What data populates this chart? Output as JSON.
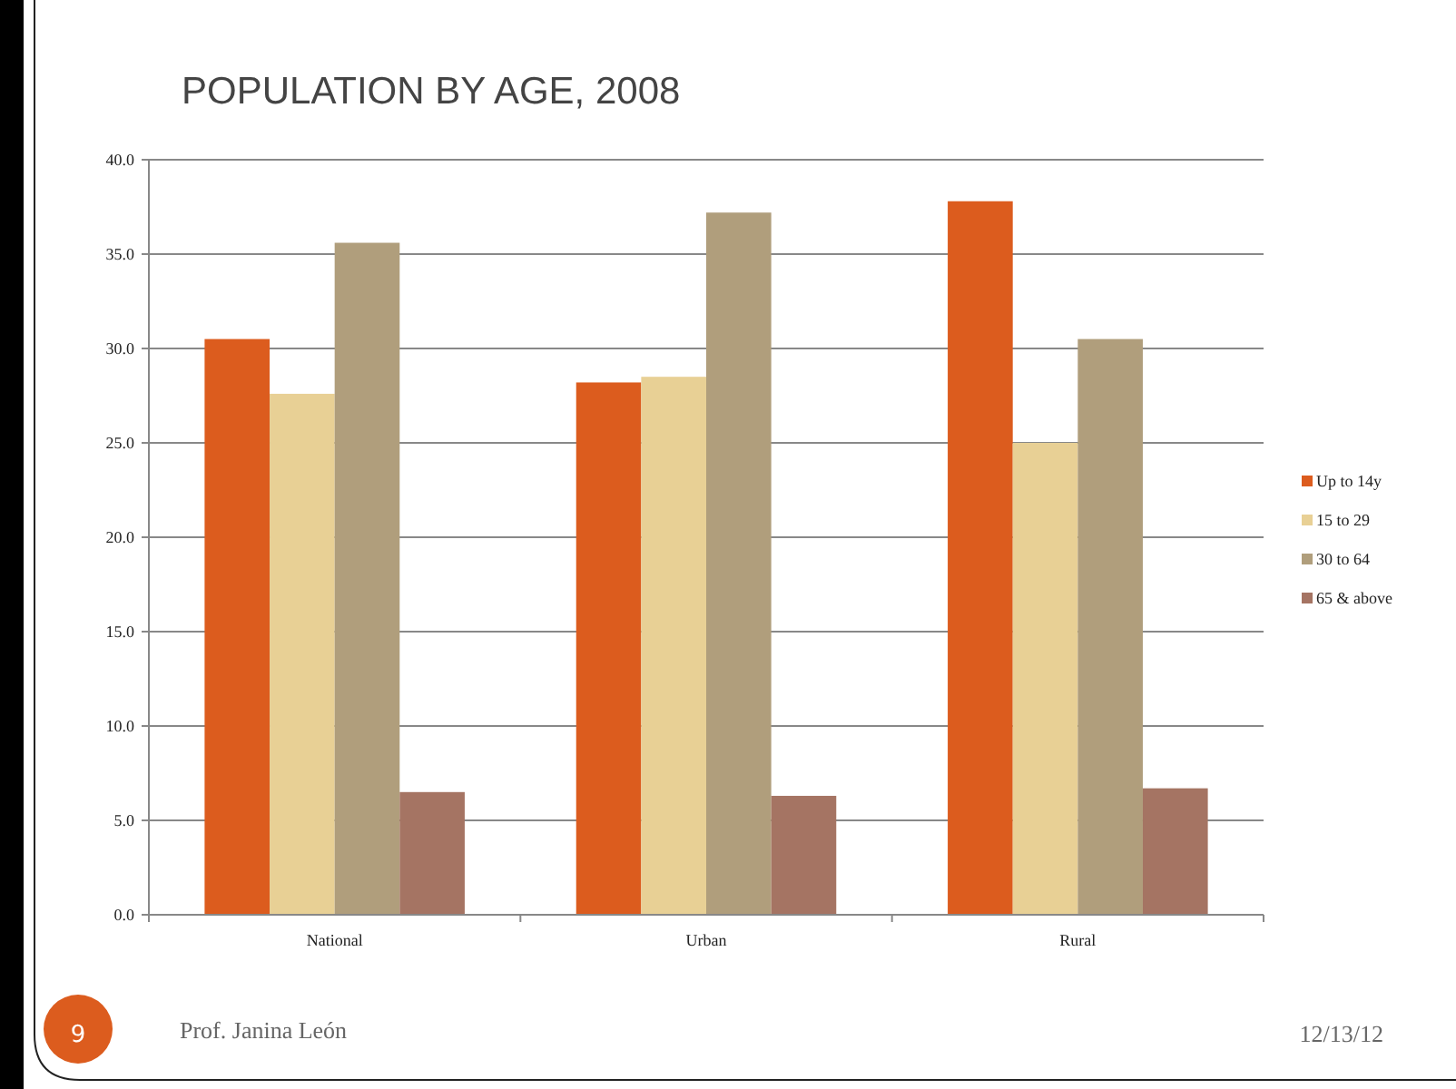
{
  "chart_data": {
    "type": "bar",
    "title": "POPULATION BY AGE, 2008",
    "categories": [
      "National",
      "Urban",
      "Rural"
    ],
    "series": [
      {
        "name": "Up to 14y",
        "color": "#dc5c1e",
        "values": [
          30.5,
          28.2,
          37.8
        ]
      },
      {
        "name": "15 to 29",
        "color": "#e8d095",
        "values": [
          27.6,
          28.5,
          25.0
        ]
      },
      {
        "name": "30 to 64",
        "color": "#b09e7c",
        "values": [
          35.6,
          37.2,
          30.5
        ]
      },
      {
        "name": "65 & above",
        "color": "#a57463",
        "values": [
          6.5,
          6.3,
          6.7
        ]
      }
    ],
    "ylim": [
      0,
      40
    ],
    "yticks": [
      {
        "value": 0,
        "label": "0.0"
      },
      {
        "value": 5,
        "label": "5.0"
      },
      {
        "value": 10,
        "label": "10.0"
      },
      {
        "value": 15,
        "label": "15.0"
      },
      {
        "value": 20,
        "label": "20.0"
      },
      {
        "value": 25,
        "label": "25.0"
      },
      {
        "value": 30,
        "label": "30.0"
      },
      {
        "value": 35,
        "label": "35.0"
      },
      {
        "value": 40,
        "label": "40.0"
      }
    ],
    "grid": "y",
    "legend": "right",
    "annotations": [
      "9",
      "Prof. Janina León",
      "12/13/12"
    ]
  }
}
